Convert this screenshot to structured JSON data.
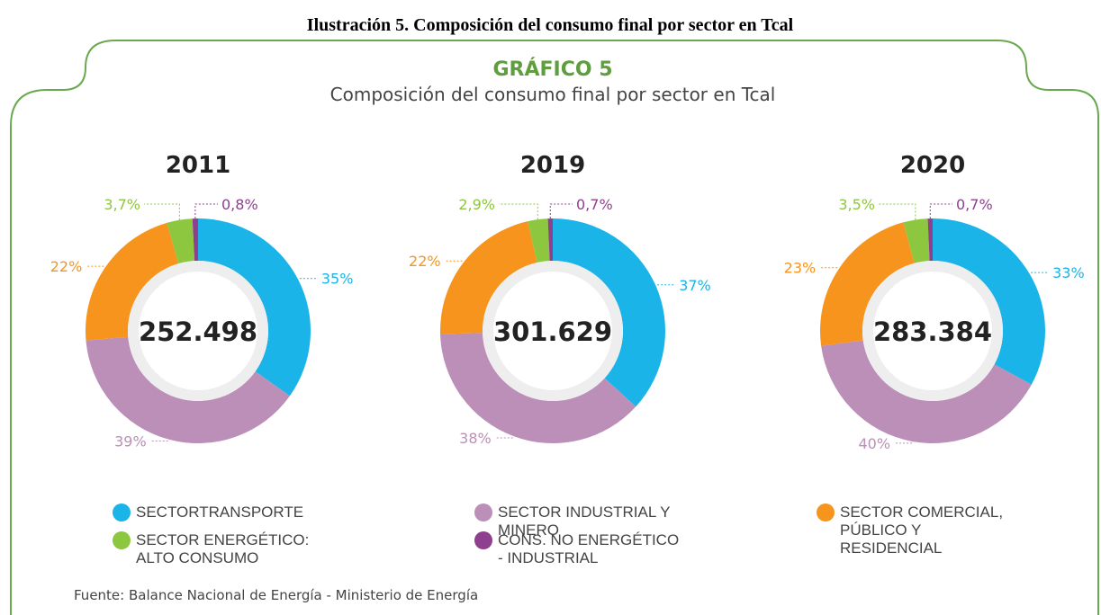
{
  "caption": "Ilustración 5. Composición del consumo final por sector en Tcal",
  "heading": "GRÁFICO 5",
  "source": "Fuente: Balance Nacional de Energía - Ministerio de Energía",
  "chart_data": {
    "type": "pie",
    "title": "Composición del consumo final por sector en Tcal",
    "categories": [
      "SECTORTRANSPORTE",
      "SECTOR INDUSTRIAL Y MINERO",
      "SECTOR COMERCIAL, PÚBLICO Y RESIDENCIAL",
      "SECTOR ENERGÉTICO: ALTO CONSUMO",
      "CONS. NO ENERGÉTICO - INDUSTRIAL"
    ],
    "colors": [
      "#1ab4e8",
      "#bb8fb7",
      "#f7941d",
      "#8dc63f",
      "#8e3f8e"
    ],
    "series": [
      {
        "name": "2011",
        "values": [
          35,
          39,
          22,
          3.7,
          0.8
        ],
        "value_labels": [
          "35%",
          "39%",
          "22%",
          "3,7%",
          "0,8%"
        ],
        "total": 252498,
        "total_label": "252.498"
      },
      {
        "name": "2019",
        "values": [
          37,
          38,
          22,
          2.9,
          0.7
        ],
        "value_labels": [
          "37%",
          "38%",
          "22%",
          "2,9%",
          "0,7%"
        ],
        "total": 301629,
        "total_label": "301.629"
      },
      {
        "name": "2020",
        "values": [
          33,
          40,
          23,
          3.5,
          0.7
        ],
        "value_labels": [
          "33%",
          "40%",
          "23%",
          "3,5%",
          "0,7%"
        ],
        "total": 283384,
        "total_label": "283.384"
      }
    ]
  }
}
